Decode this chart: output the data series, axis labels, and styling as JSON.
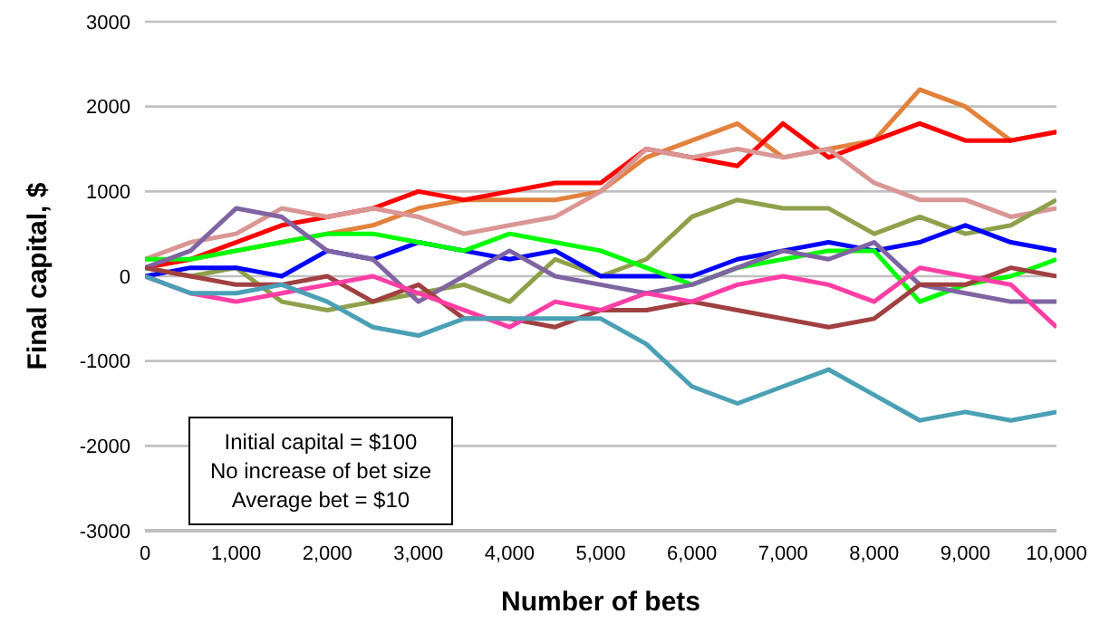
{
  "chart_data": {
    "type": "line",
    "xlabel": "Number of bets",
    "ylabel": "Final capital, $",
    "x": [
      0,
      500,
      1000,
      1500,
      2000,
      2500,
      3000,
      3500,
      4000,
      4500,
      5000,
      5500,
      6000,
      6500,
      7000,
      7500,
      8000,
      8500,
      9000,
      9500,
      10000
    ],
    "xlim": [
      0,
      10000
    ],
    "xticks": [
      0,
      {
        "value": 1000,
        "label": "1,000"
      },
      {
        "value": 2000,
        "label": "2,000"
      },
      {
        "value": 3000,
        "label": "3,000"
      },
      {
        "value": 4000,
        "label": "4,000"
      },
      {
        "value": 5000,
        "label": "5,000"
      },
      {
        "value": 6000,
        "label": "6,000"
      },
      {
        "value": 7000,
        "label": "7,000"
      },
      {
        "value": 8000,
        "label": "8,000"
      },
      {
        "value": 9000,
        "label": "9,000"
      },
      {
        "value": 10000,
        "label": "10,000"
      }
    ],
    "ylim": [
      -3000,
      3000
    ],
    "yticks": [
      -3000,
      -2000,
      -1000,
      0,
      1000,
      2000,
      3000
    ],
    "grid": "y",
    "legend": false,
    "marker": "none",
    "line_style": "solid",
    "series": [
      {
        "color": "#e2813c",
        "values": [
          100,
          200,
          300,
          400,
          500,
          600,
          800,
          900,
          900,
          900,
          1000,
          1400,
          1600,
          1800,
          1400,
          1500,
          1600,
          2200,
          2000,
          1600,
          1700
        ]
      },
      {
        "color": "#ff0000",
        "values": [
          100,
          200,
          400,
          600,
          700,
          800,
          1000,
          900,
          1000,
          1100,
          1100,
          1500,
          1400,
          1300,
          1800,
          1400,
          1600,
          1800,
          1600,
          1600,
          1700
        ]
      },
      {
        "color": "#d99694",
        "values": [
          200,
          400,
          500,
          800,
          700,
          800,
          700,
          500,
          600,
          700,
          1000,
          1500,
          1400,
          1500,
          1400,
          1500,
          1100,
          900,
          900,
          700,
          800
        ]
      },
      {
        "color": "#8ea04a",
        "values": [
          100,
          0,
          100,
          -300,
          -400,
          -300,
          -200,
          -100,
          -300,
          200,
          0,
          200,
          700,
          900,
          800,
          800,
          500,
          700,
          500,
          600,
          900
        ]
      },
      {
        "color": "#0000ff",
        "values": [
          0,
          100,
          100,
          0,
          300,
          200,
          400,
          300,
          200,
          300,
          0,
          0,
          0,
          200,
          300,
          400,
          300,
          400,
          600,
          400,
          300
        ]
      },
      {
        "color": "#00ff00",
        "values": [
          200,
          200,
          300,
          400,
          500,
          500,
          400,
          300,
          500,
          400,
          300,
          100,
          -100,
          100,
          200,
          300,
          300,
          -300,
          -100,
          0,
          200
        ]
      },
      {
        "color": "#7f64a2",
        "values": [
          100,
          300,
          800,
          700,
          300,
          200,
          -300,
          0,
          300,
          0,
          -100,
          -200,
          -100,
          100,
          300,
          200,
          400,
          -100,
          -200,
          -300,
          -300
        ]
      },
      {
        "color": "#a04040",
        "values": [
          100,
          0,
          -100,
          -100,
          0,
          -300,
          -100,
          -500,
          -500,
          -600,
          -400,
          -400,
          -300,
          -400,
          -500,
          -600,
          -500,
          -100,
          -100,
          100,
          0
        ]
      },
      {
        "color": "#ff3ea5",
        "values": [
          0,
          -200,
          -300,
          -200,
          -100,
          0,
          -200,
          -400,
          -600,
          -300,
          -400,
          -200,
          -300,
          -100,
          0,
          -100,
          -300,
          100,
          0,
          -100,
          -600
        ]
      },
      {
        "color": "#4aa0b5",
        "values": [
          0,
          -200,
          -200,
          -100,
          -300,
          -600,
          -700,
          -500,
          -500,
          -500,
          -500,
          -800,
          -1300,
          -1500,
          -1300,
          -1100,
          -1400,
          -1700,
          -1600,
          -1700,
          -1600
        ]
      }
    ],
    "annotations": [
      "Initial capital = $100",
      "No increase of bet size",
      "Average bet = $10"
    ]
  }
}
